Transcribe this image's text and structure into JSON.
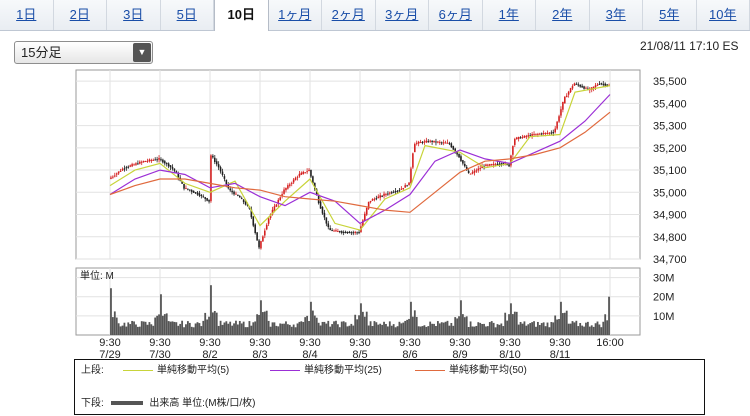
{
  "tabs": [
    {
      "label": "1日",
      "active": false
    },
    {
      "label": "2日",
      "active": false
    },
    {
      "label": "3日",
      "active": false
    },
    {
      "label": "5日",
      "active": false
    },
    {
      "label": "10日",
      "active": true
    },
    {
      "label": "1ヶ月",
      "active": false
    },
    {
      "label": "2ヶ月",
      "active": false
    },
    {
      "label": "3ヶ月",
      "active": false
    },
    {
      "label": "6ヶ月",
      "active": false
    },
    {
      "label": "1年",
      "active": false
    },
    {
      "label": "2年",
      "active": false
    },
    {
      "label": "3年",
      "active": false
    },
    {
      "label": "5年",
      "active": false
    },
    {
      "label": "10年",
      "active": false
    }
  ],
  "timeframe": {
    "selected": "15分足"
  },
  "timestamp": "21/08/11 17:10 ES",
  "chart_data": {
    "type": "line",
    "price_panel": {
      "ylim": [
        34700,
        35550
      ],
      "yticks": [
        "35,500",
        "35,400",
        "35,300",
        "35,200",
        "35,100",
        "35,000",
        "34,900",
        "34,800",
        "34,700"
      ],
      "ytick_values": [
        35500,
        35400,
        35300,
        35200,
        35100,
        35000,
        34900,
        34800,
        34700
      ],
      "candle_colors": {
        "up": "#d42020",
        "down": "#202020"
      },
      "price_path": [
        [
          0,
          35060
        ],
        [
          0.3,
          35110
        ],
        [
          0.7,
          35140
        ],
        [
          1.0,
          35150
        ],
        [
          1.2,
          35120
        ],
        [
          1.3,
          35100
        ],
        [
          1.5,
          35020
        ],
        [
          1.8,
          34990
        ],
        [
          2.0,
          34960
        ],
        [
          2.0,
          35180
        ],
        [
          2.2,
          35110
        ],
        [
          2.4,
          35010
        ],
        [
          2.6,
          34980
        ],
        [
          2.8,
          34930
        ],
        [
          3.0,
          34750
        ],
        [
          3.2,
          34890
        ],
        [
          3.5,
          35010
        ],
        [
          3.8,
          35080
        ],
        [
          4.0,
          35100
        ],
        [
          4.2,
          34950
        ],
        [
          4.4,
          34830
        ],
        [
          4.7,
          34820
        ],
        [
          5.0,
          34820
        ],
        [
          5.2,
          34960
        ],
        [
          5.5,
          34990
        ],
        [
          5.8,
          35010
        ],
        [
          6.0,
          35040
        ],
        [
          6.1,
          35220
        ],
        [
          6.4,
          35230
        ],
        [
          6.8,
          35220
        ],
        [
          7.0,
          35160
        ],
        [
          7.2,
          35080
        ],
        [
          7.5,
          35120
        ],
        [
          7.9,
          35130
        ],
        [
          8.0,
          35120
        ],
        [
          8.1,
          35240
        ],
        [
          8.5,
          35260
        ],
        [
          8.9,
          35270
        ],
        [
          9.1,
          35420
        ],
        [
          9.3,
          35490
        ],
        [
          9.6,
          35460
        ],
        [
          9.8,
          35490
        ],
        [
          10.0,
          35480
        ]
      ],
      "moving_averages": [
        {
          "name": "単純移動平均(5)",
          "color": "#c8d43a",
          "points": [
            [
              0,
              35030
            ],
            [
              0.5,
              35100
            ],
            [
              1.0,
              35130
            ],
            [
              1.5,
              35040
            ],
            [
              2.0,
              35000
            ],
            [
              2.5,
              35050
            ],
            [
              3.0,
              34850
            ],
            [
              3.5,
              34960
            ],
            [
              4.0,
              35060
            ],
            [
              4.5,
              34860
            ],
            [
              5.0,
              34830
            ],
            [
              5.5,
              34970
            ],
            [
              6.0,
              35020
            ],
            [
              6.3,
              35210
            ],
            [
              7.0,
              35180
            ],
            [
              7.5,
              35110
            ],
            [
              8.0,
              35130
            ],
            [
              8.4,
              35250
            ],
            [
              9.0,
              35260
            ],
            [
              9.3,
              35450
            ],
            [
              10.0,
              35480
            ]
          ]
        },
        {
          "name": "単純移動平均(25)",
          "color": "#9b2fd6",
          "points": [
            [
              0,
              34990
            ],
            [
              0.5,
              35060
            ],
            [
              1.0,
              35100
            ],
            [
              1.5,
              35080
            ],
            [
              2.0,
              35020
            ],
            [
              2.5,
              35040
            ],
            [
              3.0,
              34980
            ],
            [
              3.5,
              34940
            ],
            [
              4.0,
              35000
            ],
            [
              4.5,
              34960
            ],
            [
              5.0,
              34860
            ],
            [
              5.5,
              34920
            ],
            [
              6.0,
              34990
            ],
            [
              6.5,
              35140
            ],
            [
              7.0,
              35190
            ],
            [
              7.5,
              35150
            ],
            [
              8.0,
              35130
            ],
            [
              8.5,
              35180
            ],
            [
              9.0,
              35230
            ],
            [
              9.5,
              35320
            ],
            [
              10.0,
              35440
            ]
          ]
        },
        {
          "name": "単純移動平均(50)",
          "color": "#e06a3e",
          "points": [
            [
              0,
              34990
            ],
            [
              0.5,
              35030
            ],
            [
              1.0,
              35060
            ],
            [
              1.5,
              35060
            ],
            [
              2.0,
              35040
            ],
            [
              2.5,
              35020
            ],
            [
              3.0,
              35010
            ],
            [
              3.5,
              34980
            ],
            [
              4.0,
              34970
            ],
            [
              4.5,
              34960
            ],
            [
              5.0,
              34940
            ],
            [
              5.5,
              34920
            ],
            [
              6.0,
              34910
            ],
            [
              6.5,
              35000
            ],
            [
              7.0,
              35090
            ],
            [
              7.5,
              35140
            ],
            [
              8.0,
              35150
            ],
            [
              8.5,
              35170
            ],
            [
              9.0,
              35200
            ],
            [
              9.5,
              35270
            ],
            [
              10.0,
              35360
            ]
          ]
        }
      ]
    },
    "volume_panel": {
      "unit_label": "単位: M",
      "ylim": [
        0,
        35
      ],
      "yticks": [
        "30M",
        "20M",
        "10M"
      ],
      "ytick_values": [
        30,
        20,
        10
      ],
      "color": "#555555",
      "open_spike": [
        31,
        27,
        33,
        23,
        22,
        21,
        22,
        23,
        21,
        22
      ],
      "close_spike": [
        null,
        null,
        null,
        null,
        null,
        null,
        null,
        null,
        null,
        20
      ]
    },
    "x_axis": {
      "sessions": 10,
      "tick_positions": [
        0,
        1,
        2,
        3,
        4,
        5,
        6,
        7,
        8,
        9,
        10
      ],
      "ticks": [
        {
          "time": "9:30",
          "date": "7/29"
        },
        {
          "time": "9:30",
          "date": "7/30"
        },
        {
          "time": "9:30",
          "date": "8/2"
        },
        {
          "time": "9:30",
          "date": "8/3"
        },
        {
          "time": "9:30",
          "date": "8/4"
        },
        {
          "time": "9:30",
          "date": "8/5"
        },
        {
          "time": "9:30",
          "date": "8/6"
        },
        {
          "time": "9:30",
          "date": "8/9"
        },
        {
          "time": "9:30",
          "date": "8/10"
        },
        {
          "time": "9:30",
          "date": "8/11"
        },
        {
          "time": "16:00",
          "date": ""
        }
      ]
    }
  },
  "legend": {
    "upper_label": "上段:",
    "lower_label": "下段:",
    "lower_item": "出来高 単位:(M株/口/枚)"
  }
}
